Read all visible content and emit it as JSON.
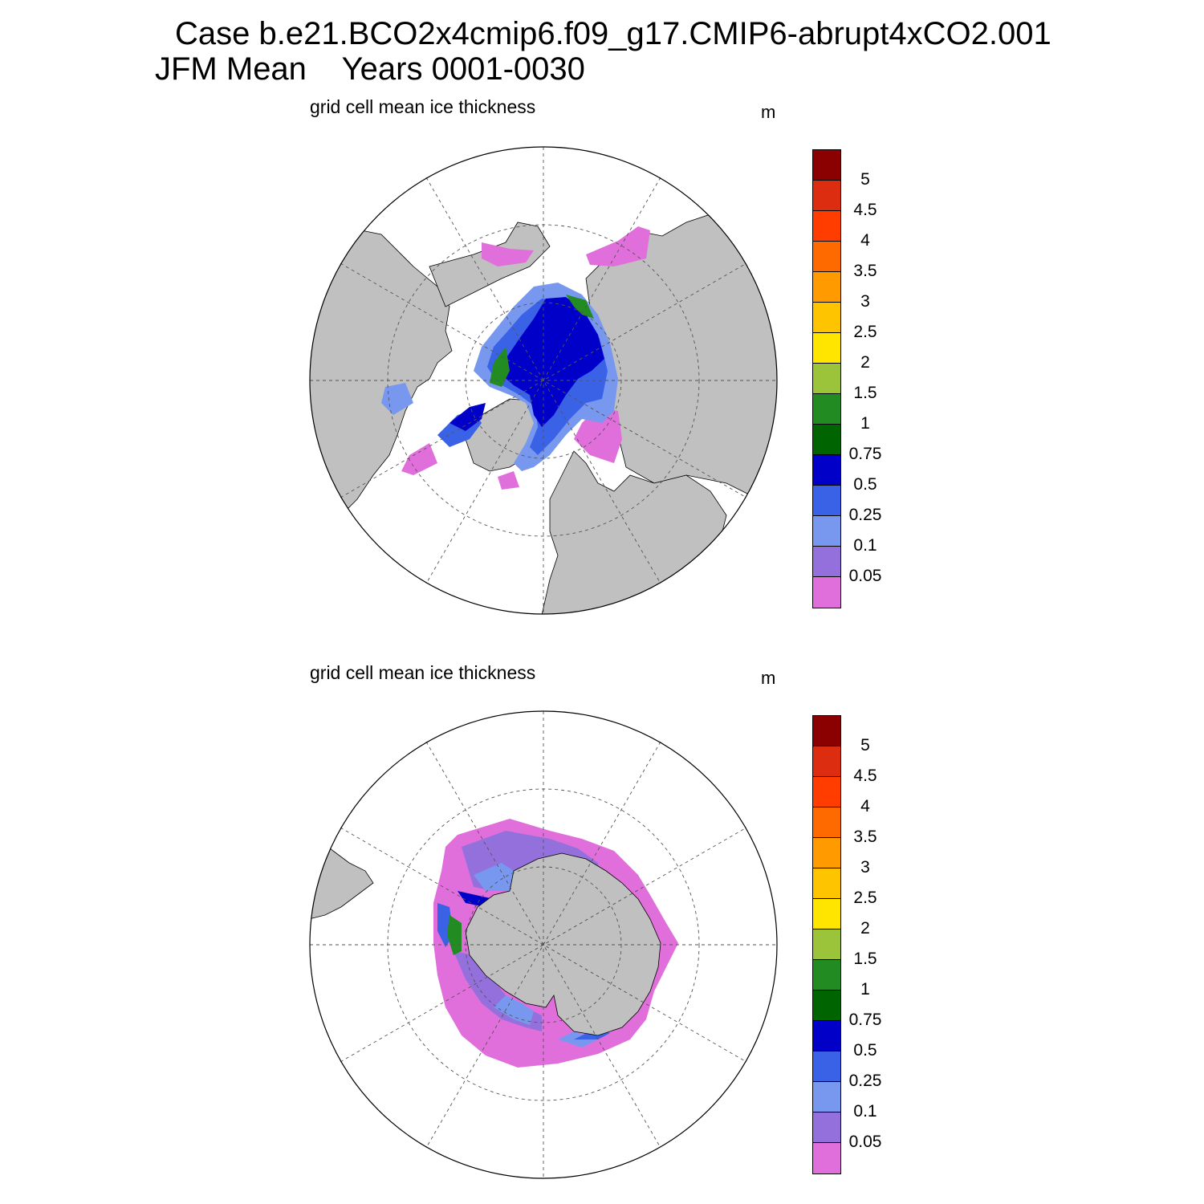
{
  "header": {
    "case_line": "Case b.e21.BCO2x4cmip6.f09_g17.CMIP6-abrupt4xCO2.001",
    "season_label": "JFM Mean",
    "years_label": "Years 0001-0030"
  },
  "panels": [
    {
      "id": "nh",
      "hemisphere": "north",
      "title": "grid cell mean ice thickness",
      "units": "m"
    },
    {
      "id": "sh",
      "hemisphere": "south",
      "title": "grid cell mean ice thickness",
      "units": "m"
    }
  ],
  "colorbar": {
    "labels": [
      "5",
      "4.5",
      "4",
      "3.5",
      "3",
      "2.5",
      "2",
      "1.5",
      "1",
      "0.75",
      "0.5",
      "0.25",
      "0.1",
      "0.05"
    ],
    "colors_top_to_bottom": [
      "#8b0000",
      "#dc2d10",
      "#ff3d00",
      "#ff6a00",
      "#ff9a00",
      "#ffc400",
      "#ffe500",
      "#9bc43a",
      "#228b22",
      "#006400",
      "#0000c8",
      "#3a62e6",
      "#7898f0",
      "#9370db",
      "#e06fdc"
    ]
  },
  "colors": {
    "land": "#c0c0c0",
    "ocean": "#ffffff",
    "grid": "#555555"
  }
}
